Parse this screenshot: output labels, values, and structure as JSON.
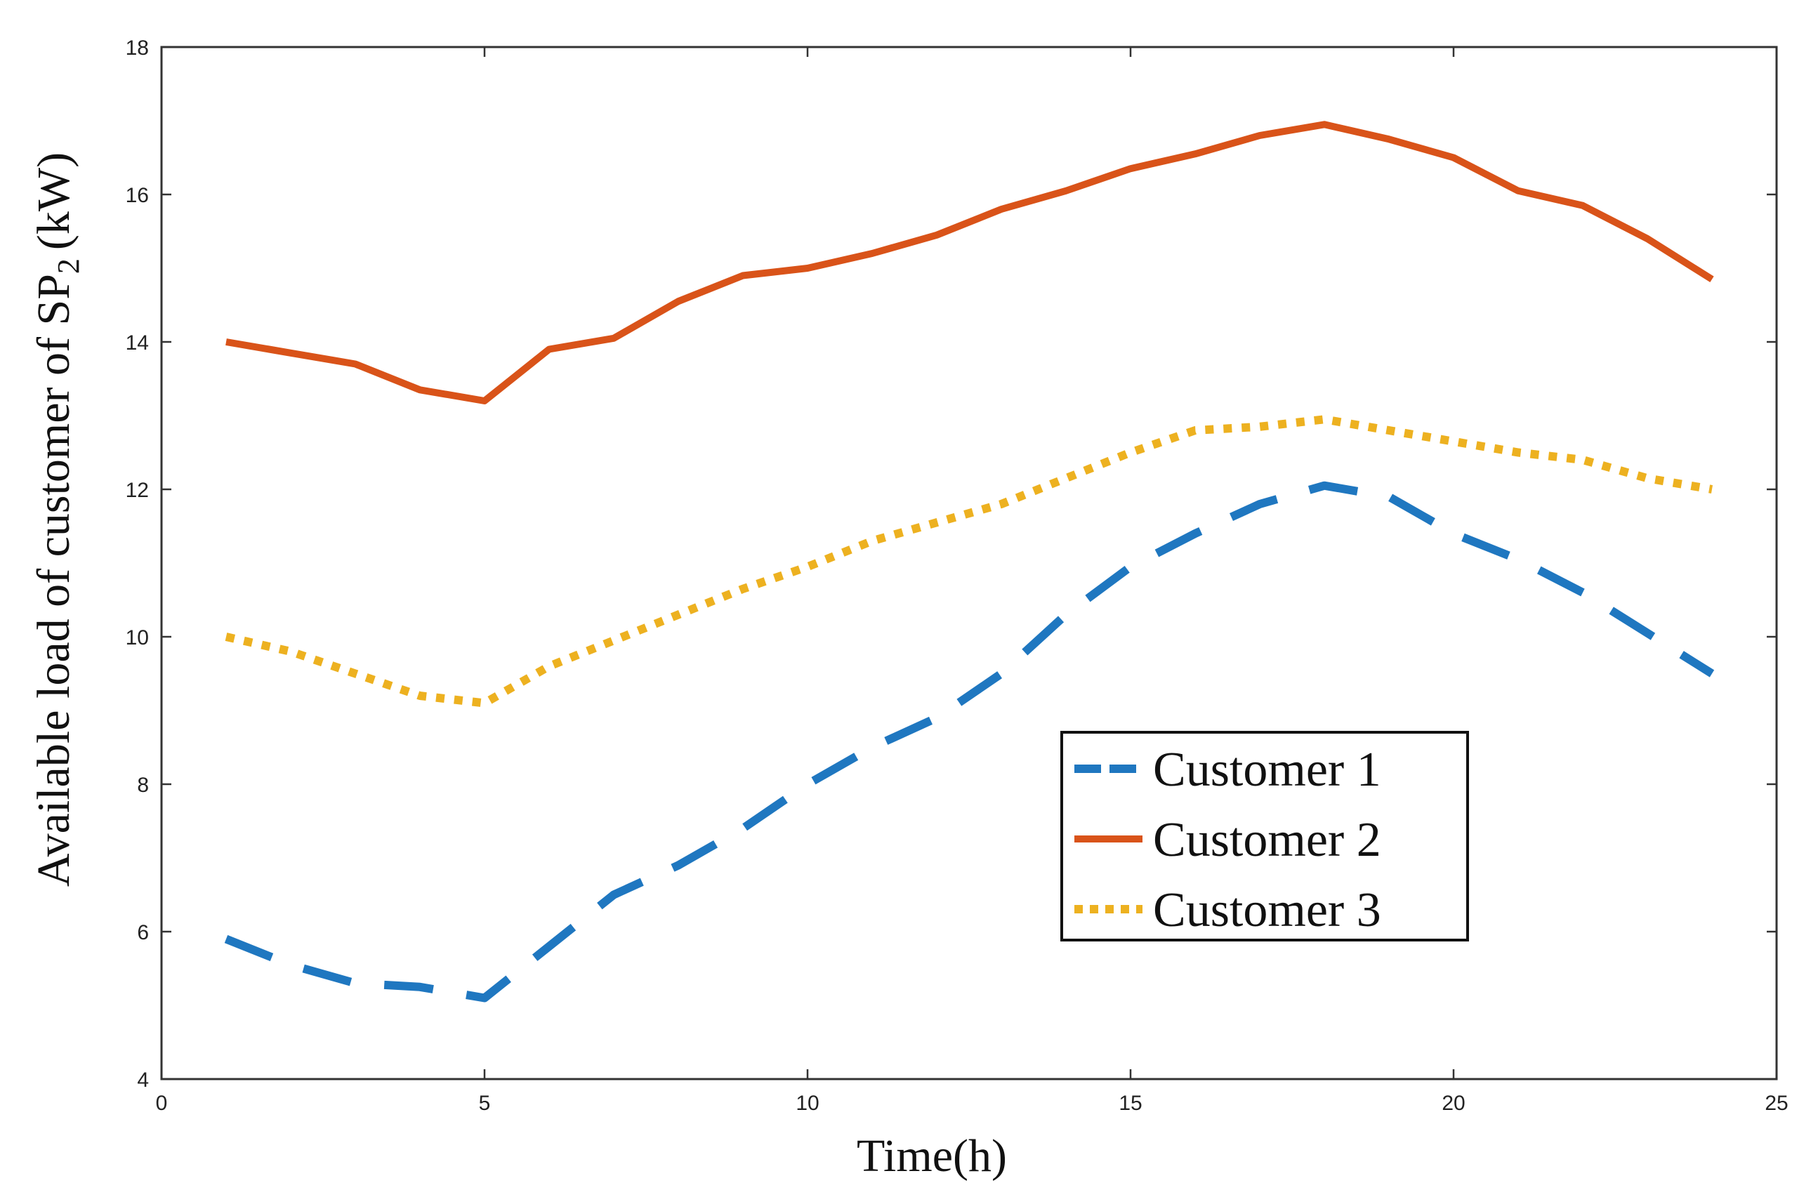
{
  "chart_data": {
    "type": "line",
    "title": "",
    "xlabel": "Time(h)",
    "ylabel": "Available load of customer of SP",
    "ylabel_subscript": "2",
    "ylabel_unit": "(kW)",
    "xlim": [
      0,
      25
    ],
    "ylim": [
      4,
      18
    ],
    "xticks": [
      0,
      5,
      10,
      15,
      20,
      25
    ],
    "yticks": [
      4,
      6,
      8,
      10,
      12,
      14,
      16,
      18
    ],
    "grid": false,
    "legend_position": "lower-right",
    "x": [
      1,
      2,
      3,
      4,
      5,
      6,
      7,
      8,
      9,
      10,
      11,
      12,
      13,
      14,
      15,
      16,
      17,
      18,
      19,
      20,
      21,
      22,
      23,
      24
    ],
    "series": [
      {
        "name": "Customer 1",
        "color": "#1f77c0",
        "style": "dashed",
        "values": [
          5.9,
          5.55,
          5.3,
          5.25,
          5.1,
          5.8,
          6.5,
          6.9,
          7.4,
          8.0,
          8.5,
          8.9,
          9.5,
          10.3,
          10.95,
          11.4,
          11.8,
          12.05,
          11.9,
          11.4,
          11.05,
          10.6,
          10.05,
          9.5
        ]
      },
      {
        "name": "Customer 2",
        "color": "#d95319",
        "style": "solid",
        "values": [
          14.0,
          13.85,
          13.7,
          13.35,
          13.2,
          13.9,
          14.05,
          14.55,
          14.9,
          15.0,
          15.2,
          15.45,
          15.8,
          16.05,
          16.35,
          16.55,
          16.8,
          16.95,
          16.75,
          16.5,
          16.05,
          15.85,
          15.4,
          14.85
        ]
      },
      {
        "name": "Customer 3",
        "color": "#edb120",
        "style": "dotted",
        "values": [
          10.0,
          9.8,
          9.5,
          9.2,
          9.1,
          9.6,
          9.95,
          10.3,
          10.65,
          10.95,
          11.3,
          11.55,
          11.8,
          12.15,
          12.5,
          12.8,
          12.85,
          12.95,
          12.8,
          12.65,
          12.5,
          12.4,
          12.15,
          12.0
        ]
      }
    ]
  }
}
